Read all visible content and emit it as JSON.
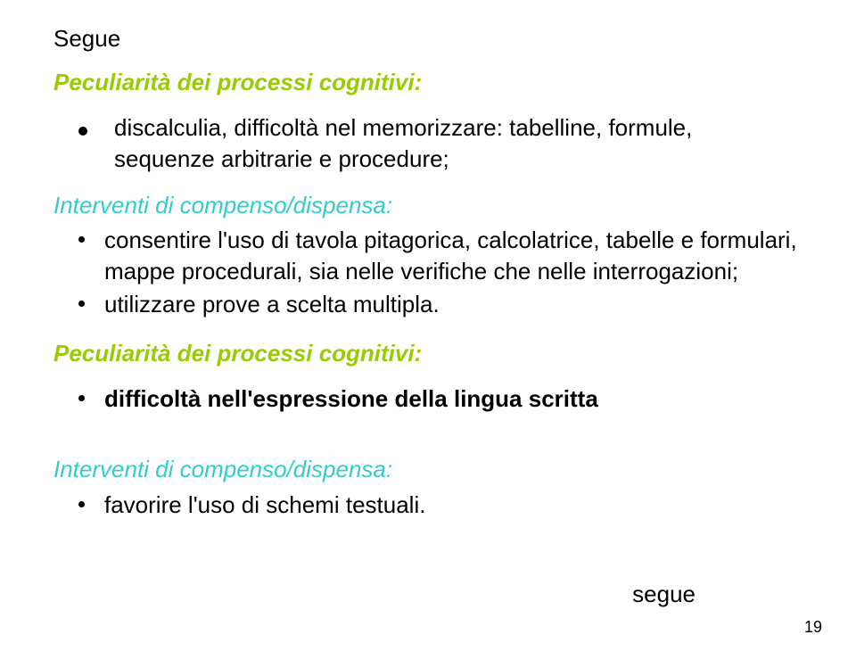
{
  "top_label": "Segue",
  "section1": {
    "heading": "Peculiarità dei processi cognitivi:",
    "main_bullet_line1": "discalculia, difficoltà nel memorizzare:  tabelline, formule,",
    "main_bullet_line2": "sequenze arbitrarie e procedure;"
  },
  "section2": {
    "heading": "Interventi di compenso/dispensa:",
    "bullets": [
      "consentire l'uso di tavola pitagorica, calcolatrice, tabelle e formulari, mappe procedurali, sia nelle verifiche che nelle interrogazioni;",
      "utilizzare prove a scelta multipla."
    ]
  },
  "section3": {
    "heading": "Peculiarità dei processi cognitivi:",
    "bullet": "difficoltà nell'espressione della lingua scritta"
  },
  "section4": {
    "heading": "Interventi di compenso/dispensa:",
    "bullet": "favorire l'uso di schemi testuali."
  },
  "bottom_label": "segue",
  "page_number": "19",
  "colors": {
    "green": "#99cc00",
    "lightblue": "#33cccc",
    "text": "#000000",
    "background": "#ffffff"
  },
  "fontsizes": {
    "body": 26,
    "page_number": 18
  }
}
